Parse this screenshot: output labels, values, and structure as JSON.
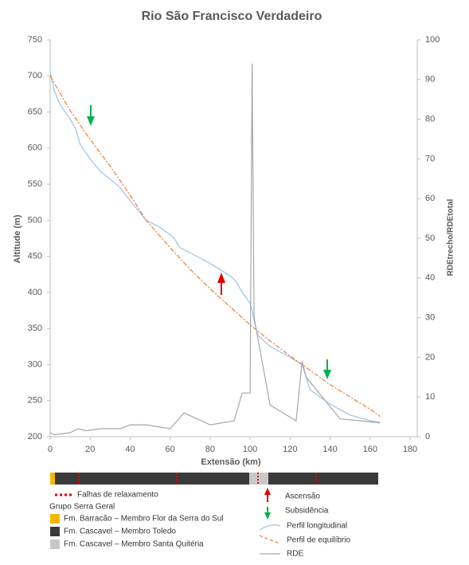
{
  "chart_data": {
    "type": "line",
    "title": "Rio São Francisco Verdadeiro",
    "xlabel": "Extensão (km)",
    "ylabel": "Altitude (m)",
    "y2label": "RDEtrecho/RDEtotal",
    "xlim": [
      0,
      180
    ],
    "xticks": [
      0,
      20,
      40,
      60,
      80,
      100,
      120,
      140,
      160,
      180
    ],
    "ylim": [
      200,
      750
    ],
    "yticks": [
      200,
      250,
      300,
      350,
      400,
      450,
      500,
      550,
      600,
      650,
      700,
      750
    ],
    "y2lim": [
      0,
      100
    ],
    "y2ticks": [
      0,
      10,
      20,
      30,
      40,
      50,
      60,
      70,
      80,
      90,
      100
    ],
    "grid": false,
    "series": [
      {
        "name": "Perfil longitudinal",
        "color": "#9dc3e6",
        "x": [
          0,
          2,
          5,
          10,
          13,
          15,
          20,
          25,
          30,
          35,
          40,
          45,
          48,
          55,
          60,
          62,
          65,
          70,
          80,
          90,
          93,
          96,
          100,
          101,
          102,
          104,
          110,
          120,
          126,
          130,
          140,
          150,
          160,
          165
        ],
        "values": [
          705,
          680,
          660,
          640,
          625,
          605,
          585,
          568,
          557,
          545,
          527,
          510,
          500,
          490,
          480,
          475,
          462,
          455,
          440,
          423,
          415,
          400,
          385,
          375,
          360,
          340,
          325,
          310,
          300,
          265,
          245,
          230,
          222,
          220
        ]
      },
      {
        "name": "Perfil de equilíbrio",
        "color": "#ed7d31",
        "x": [
          0,
          10,
          20,
          30,
          40,
          48,
          60,
          70,
          80,
          90,
          100,
          110,
          120,
          130,
          140,
          150,
          160,
          165
        ],
        "values": [
          700,
          652,
          612,
          575,
          535,
          500,
          462,
          432,
          405,
          380,
          355,
          333,
          312,
          292,
          272,
          255,
          238,
          228
        ]
      },
      {
        "name": "RDE",
        "color": "#a6a6a6",
        "axis": "y2",
        "x": [
          0,
          2,
          10,
          14,
          18,
          25,
          35,
          40,
          48,
          60,
          67,
          80,
          92,
          96,
          100,
          101,
          102,
          110,
          123,
          126,
          128,
          145,
          165
        ],
        "values": [
          1,
          0.5,
          1,
          2,
          1.5,
          2,
          2,
          3,
          3,
          2,
          6,
          3,
          4,
          11,
          11,
          94,
          30,
          8,
          4,
          19,
          15,
          4.5,
          3.5
        ]
      }
    ]
  },
  "geology_legend": {
    "faults": "Falhas de relaxamento",
    "group": "Grupo Serra Geral",
    "units": [
      "Fm. Barracão – Membro Flor da Serra do Sul",
      "Fm. Cascavel – Membro Toledo",
      "Fm. Cascavel – Membro Santa Quitéria"
    ],
    "ascent": "Ascensão",
    "subsidence": "Subsidência"
  }
}
